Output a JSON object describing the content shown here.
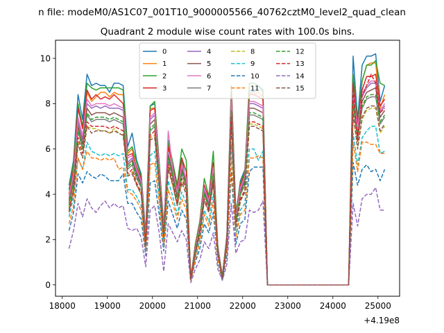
{
  "suptitle": "n file: modeM0/AS1C07_001T10_9000005566_40762cztM0_level2_quad_clean",
  "chart_data": {
    "type": "line",
    "title": "Quadrant 2 module wise count rates with 100.0s bins.",
    "xlabel": "",
    "ylabel": "",
    "x_offset_label": "+4.19e8",
    "xlim": [
      17850,
      25480
    ],
    "ylim": [
      -0.5,
      10.8
    ],
    "xticks": [
      18000,
      19000,
      20000,
      21000,
      22000,
      23000,
      24000,
      25000
    ],
    "yticks": [
      0,
      2,
      4,
      6,
      8,
      10
    ],
    "grid": false,
    "legend": {
      "placement": "top-center",
      "ncol": 4
    },
    "x": [
      18150,
      18250,
      18350,
      18450,
      18550,
      18650,
      18750,
      18850,
      18950,
      19050,
      19150,
      19250,
      19350,
      19450,
      19550,
      19650,
      19750,
      19850,
      19950,
      20050,
      20150,
      20250,
      20350,
      20450,
      20550,
      20650,
      20750,
      20850,
      20950,
      21050,
      21150,
      21250,
      21350,
      21450,
      21550,
      21650,
      21750,
      21850,
      21950,
      22050,
      22150,
      22250,
      22350,
      22450,
      22550,
      22650,
      24250,
      24350,
      24450,
      24550,
      24650,
      24750,
      24850,
      24950,
      25050,
      25150
    ],
    "series": [
      {
        "name": "0",
        "color": "#1f77b4",
        "style": "solid",
        "values": [
          4.4,
          5.5,
          8.4,
          7.3,
          9.3,
          8.8,
          8.9,
          8.8,
          8.8,
          8.5,
          8.9,
          8.9,
          8.8,
          6.1,
          6.7,
          5.5,
          4.9,
          2.3,
          7.9,
          8.0,
          5.4,
          2.6,
          6.4,
          5.4,
          4.4,
          5.6,
          4.5,
          0.3,
          1.7,
          2.8,
          4.4,
          3.8,
          5.2,
          1.7,
          0.4,
          2.2,
          8.8,
          3.1,
          4.6,
          5.1,
          8.6,
          8.5,
          8.8,
          8.5,
          0.0,
          0.0,
          0.0,
          0.0,
          10.1,
          7.3,
          9.7,
          10.1,
          10.1,
          10.2,
          8.1,
          8.8
        ]
      },
      {
        "name": "1",
        "color": "#ff7f0e",
        "style": "solid",
        "values": [
          3.4,
          4.8,
          7.3,
          6.5,
          8.5,
          8.1,
          8.3,
          8.5,
          8.5,
          8.3,
          8.5,
          8.4,
          8.4,
          5.8,
          6.0,
          5.1,
          4.7,
          2.2,
          7.8,
          7.8,
          5.1,
          2.5,
          6.2,
          5.3,
          4.2,
          5.4,
          4.3,
          0.3,
          1.6,
          2.6,
          4.2,
          3.7,
          5.0,
          1.6,
          0.4,
          2.1,
          8.7,
          3.0,
          4.5,
          5.0,
          8.5,
          8.4,
          8.5,
          8.3,
          0.0,
          0.0,
          0.0,
          0.0,
          9.3,
          7.0,
          9.0,
          9.7,
          9.8,
          9.8,
          7.8,
          8.4
        ]
      },
      {
        "name": "2",
        "color": "#2ca02c",
        "style": "solid",
        "values": [
          4.2,
          5.4,
          8.0,
          7.0,
          8.9,
          8.7,
          8.6,
          8.7,
          8.7,
          8.7,
          8.7,
          8.7,
          8.6,
          5.9,
          6.1,
          5.4,
          4.8,
          2.2,
          7.9,
          8.1,
          5.3,
          2.6,
          6.3,
          5.4,
          4.4,
          6.0,
          5.5,
          0.3,
          1.8,
          2.8,
          4.7,
          3.9,
          5.9,
          1.7,
          0.4,
          2.1,
          8.8,
          3.1,
          4.5,
          5.0,
          8.9,
          8.9,
          8.8,
          8.6,
          0.0,
          0.0,
          0.0,
          0.0,
          9.3,
          7.1,
          9.0,
          9.7,
          9.7,
          9.9,
          8.9,
          8.8
        ]
      },
      {
        "name": "3",
        "color": "#d62728",
        "style": "solid",
        "values": [
          4.0,
          5.1,
          7.8,
          6.9,
          8.6,
          8.2,
          8.4,
          8.2,
          8.3,
          8.2,
          8.4,
          8.2,
          8.0,
          5.7,
          5.8,
          5.2,
          4.7,
          2.1,
          7.7,
          7.8,
          5.2,
          2.5,
          6.1,
          5.2,
          4.2,
          5.6,
          5.0,
          0.3,
          1.7,
          2.7,
          4.4,
          3.8,
          5.4,
          1.6,
          0.4,
          2.1,
          8.5,
          3.0,
          4.4,
          4.9,
          8.4,
          8.4,
          8.3,
          8.2,
          0.0,
          0.0,
          0.0,
          0.0,
          8.9,
          7.0,
          8.6,
          9.2,
          9.2,
          9.3,
          7.9,
          8.2
        ]
      },
      {
        "name": "4",
        "color": "#9467bd",
        "style": "solid",
        "values": [
          3.8,
          4.8,
          7.2,
          6.4,
          8.0,
          7.8,
          7.9,
          7.8,
          7.9,
          7.8,
          7.8,
          7.8,
          7.7,
          5.4,
          5.6,
          5.0,
          4.5,
          2.0,
          7.3,
          7.5,
          5.0,
          2.4,
          5.8,
          5.0,
          4.0,
          5.2,
          4.6,
          0.3,
          1.6,
          2.6,
          4.2,
          3.6,
          5.1,
          1.6,
          0.4,
          2.0,
          8.1,
          2.9,
          4.2,
          4.7,
          8.0,
          8.0,
          7.9,
          7.8,
          0.0,
          0.0,
          0.0,
          0.0,
          8.5,
          6.8,
          8.3,
          8.7,
          8.9,
          8.9,
          7.6,
          7.9
        ]
      },
      {
        "name": "5",
        "color": "#8c564b",
        "style": "solid",
        "values": [
          3.7,
          4.7,
          7.0,
          6.2,
          7.8,
          7.5,
          7.6,
          7.6,
          7.6,
          7.5,
          7.6,
          7.5,
          7.4,
          5.3,
          5.5,
          4.9,
          4.4,
          2.0,
          7.1,
          7.3,
          4.9,
          2.3,
          5.7,
          4.9,
          3.9,
          5.1,
          4.5,
          0.3,
          1.5,
          2.5,
          4.1,
          3.5,
          5.0,
          1.5,
          0.4,
          2.0,
          7.9,
          2.8,
          4.1,
          4.6,
          7.8,
          7.8,
          7.7,
          7.6,
          0.0,
          0.0,
          0.0,
          0.0,
          8.3,
          6.6,
          8.1,
          8.5,
          8.6,
          8.7,
          7.4,
          7.7
        ]
      },
      {
        "name": "6",
        "color": "#e377c2",
        "style": "solid",
        "values": [
          3.9,
          4.9,
          7.4,
          6.6,
          8.2,
          7.9,
          8.0,
          8.0,
          8.0,
          7.9,
          8.0,
          7.9,
          7.8,
          5.6,
          5.7,
          5.1,
          4.6,
          2.1,
          7.4,
          7.6,
          5.1,
          2.4,
          6.8,
          5.1,
          4.1,
          5.3,
          4.7,
          0.3,
          1.6,
          2.6,
          4.3,
          3.7,
          5.2,
          1.6,
          0.4,
          2.0,
          8.2,
          2.9,
          4.3,
          4.8,
          8.1,
          8.1,
          8.0,
          7.9,
          0.0,
          0.0,
          0.0,
          0.0,
          8.6,
          6.9,
          8.4,
          8.8,
          9.0,
          9.0,
          7.7,
          8.0
        ]
      },
      {
        "name": "7",
        "color": "#7f7f7f",
        "style": "solid",
        "values": [
          3.6,
          4.5,
          6.8,
          6.0,
          7.5,
          7.2,
          7.3,
          7.3,
          7.3,
          7.2,
          7.3,
          7.2,
          7.1,
          5.1,
          5.3,
          4.7,
          4.3,
          1.9,
          6.8,
          7.0,
          4.7,
          2.2,
          5.5,
          4.7,
          3.8,
          4.9,
          4.3,
          0.3,
          1.5,
          2.4,
          4.0,
          3.4,
          4.8,
          1.5,
          0.3,
          1.9,
          7.6,
          2.7,
          4.0,
          4.4,
          7.5,
          7.5,
          7.4,
          7.3,
          0.0,
          0.0,
          0.0,
          0.0,
          8.0,
          6.4,
          7.8,
          8.2,
          8.3,
          8.3,
          7.1,
          7.4
        ]
      },
      {
        "name": "8",
        "color": "#bcbd22",
        "style": "dashed",
        "values": [
          3.4,
          4.3,
          6.3,
          5.6,
          7.0,
          6.9,
          6.9,
          6.8,
          6.8,
          6.7,
          6.9,
          6.7,
          6.6,
          4.8,
          5.0,
          4.4,
          4.0,
          1.8,
          6.5,
          6.6,
          4.4,
          2.1,
          5.2,
          4.4,
          3.5,
          4.6,
          4.0,
          0.2,
          1.4,
          2.3,
          3.7,
          3.2,
          4.5,
          1.4,
          0.3,
          1.8,
          7.2,
          2.5,
          3.7,
          4.1,
          7.1,
          7.1,
          7.0,
          6.9,
          0.0,
          0.0,
          0.0,
          0.0,
          7.5,
          6.0,
          7.3,
          7.7,
          7.8,
          7.8,
          6.7,
          7.0
        ]
      },
      {
        "name": "9",
        "color": "#17becf",
        "style": "dashed",
        "values": [
          3.0,
          3.9,
          5.6,
          5.1,
          6.3,
          5.9,
          5.8,
          5.7,
          5.8,
          5.7,
          5.8,
          5.7,
          5.8,
          4.2,
          4.2,
          3.9,
          3.5,
          1.6,
          5.7,
          5.9,
          3.9,
          1.8,
          4.6,
          3.9,
          3.1,
          4.1,
          3.6,
          0.2,
          1.2,
          2.0,
          3.3,
          2.8,
          4.0,
          1.2,
          0.3,
          1.6,
          6.2,
          2.2,
          3.3,
          3.6,
          6.0,
          6.0,
          5.5,
          5.9,
          0.0,
          0.0,
          0.0,
          0.0,
          6.7,
          5.3,
          6.5,
          6.8,
          7.0,
          7.0,
          5.8,
          5.9
        ]
      },
      {
        "name": "10",
        "color": "#1f77b4",
        "style": "dashed",
        "values": [
          2.4,
          3.2,
          4.9,
          4.5,
          5.0,
          4.8,
          4.7,
          4.9,
          4.8,
          4.6,
          4.6,
          4.6,
          4.9,
          3.6,
          3.6,
          3.2,
          2.9,
          1.3,
          4.5,
          4.6,
          3.1,
          1.5,
          3.7,
          3.1,
          2.5,
          3.3,
          2.9,
          0.2,
          1.0,
          1.6,
          2.7,
          2.3,
          3.2,
          1.0,
          0.2,
          1.3,
          5.0,
          1.8,
          2.7,
          2.9,
          5.0,
          5.2,
          5.2,
          5.2,
          0.0,
          0.0,
          0.0,
          0.0,
          5.4,
          4.4,
          5.1,
          5.3,
          5.0,
          5.1,
          4.6,
          5.1
        ]
      },
      {
        "name": "11",
        "color": "#ff7f0e",
        "style": "dashed",
        "values": [
          2.7,
          3.5,
          5.6,
          5.1,
          5.9,
          5.6,
          5.6,
          5.5,
          5.6,
          5.5,
          5.6,
          5.1,
          5.2,
          4.1,
          4.0,
          3.7,
          3.3,
          1.5,
          5.3,
          5.4,
          3.6,
          1.7,
          4.2,
          3.6,
          2.9,
          3.8,
          3.3,
          0.2,
          1.1,
          1.9,
          3.1,
          2.6,
          3.7,
          1.1,
          0.3,
          1.5,
          5.6,
          2.1,
          3.1,
          3.3,
          5.6,
          5.6,
          5.7,
          5.6,
          0.0,
          0.0,
          0.0,
          0.0,
          6.3,
          5.0,
          6.3,
          6.3,
          6.2,
          6.2,
          5.8,
          5.8
        ]
      },
      {
        "name": "12",
        "color": "#2ca02c",
        "style": "dashed",
        "values": [
          3.5,
          4.5,
          6.8,
          6.0,
          7.6,
          7.3,
          7.4,
          7.4,
          7.4,
          7.3,
          7.4,
          7.3,
          7.2,
          5.2,
          5.4,
          4.8,
          4.3,
          1.9,
          6.9,
          7.1,
          4.8,
          2.3,
          5.6,
          4.8,
          3.8,
          5.0,
          4.4,
          0.3,
          1.5,
          2.5,
          4.0,
          3.5,
          4.9,
          1.5,
          0.4,
          1.9,
          7.7,
          2.8,
          4.0,
          4.5,
          7.6,
          7.6,
          7.5,
          7.4,
          0.0,
          0.0,
          0.0,
          0.0,
          8.1,
          6.5,
          7.9,
          8.3,
          8.4,
          8.4,
          7.2,
          7.5
        ]
      },
      {
        "name": "13",
        "color": "#d62728",
        "style": "dashed",
        "values": [
          3.3,
          4.2,
          6.5,
          5.8,
          7.2,
          7.0,
          7.0,
          7.0,
          7.0,
          6.9,
          7.0,
          6.9,
          6.8,
          4.9,
          5.1,
          4.5,
          4.1,
          1.8,
          6.6,
          6.8,
          4.5,
          2.2,
          5.3,
          4.5,
          3.6,
          4.7,
          4.2,
          0.3,
          1.4,
          2.3,
          3.8,
          3.3,
          4.6,
          1.4,
          0.3,
          1.8,
          7.4,
          2.6,
          3.8,
          4.2,
          7.2,
          7.2,
          7.1,
          7.0,
          0.0,
          0.0,
          0.0,
          0.0,
          8.7,
          6.3,
          8.4,
          8.8,
          9.3,
          8.9,
          7.6,
          7.8
        ]
      },
      {
        "name": "14",
        "color": "#9467bd",
        "style": "dashed",
        "values": [
          1.6,
          2.4,
          3.6,
          3.0,
          3.8,
          3.4,
          3.2,
          3.5,
          3.7,
          3.4,
          3.6,
          3.4,
          3.5,
          2.5,
          2.4,
          2.5,
          2.1,
          0.8,
          3.3,
          3.5,
          2.3,
          0.6,
          2.7,
          2.3,
          1.9,
          2.4,
          2.0,
          0.1,
          0.7,
          1.1,
          1.9,
          1.6,
          2.3,
          0.7,
          0.2,
          0.9,
          3.6,
          1.4,
          1.9,
          2.0,
          3.3,
          3.2,
          3.3,
          3.7,
          0.0,
          0.0,
          0.0,
          0.0,
          3.6,
          2.6,
          3.8,
          4.0,
          4.0,
          4.3,
          3.3,
          3.3
        ]
      },
      {
        "name": "15",
        "color": "#8c564b",
        "style": "dashed",
        "values": [
          3.2,
          4.1,
          6.2,
          5.6,
          7.0,
          6.7,
          6.8,
          6.8,
          6.8,
          6.7,
          6.8,
          6.7,
          6.6,
          4.8,
          4.9,
          4.4,
          4.0,
          1.7,
          6.4,
          6.5,
          4.4,
          2.1,
          5.1,
          4.4,
          3.5,
          4.5,
          4.0,
          0.2,
          1.4,
          2.2,
          3.7,
          3.2,
          4.5,
          1.4,
          0.3,
          1.7,
          7.1,
          2.5,
          3.7,
          4.1,
          7.0,
          7.0,
          6.9,
          6.8,
          0.0,
          0.0,
          0.0,
          0.0,
          7.6,
          6.0,
          7.4,
          7.8,
          7.9,
          7.9,
          6.8,
          7.1
        ]
      }
    ]
  }
}
